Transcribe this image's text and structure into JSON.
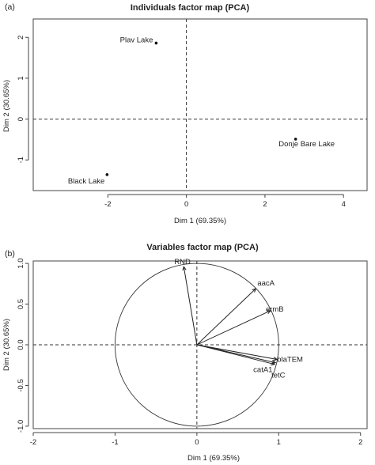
{
  "chart_data": [
    {
      "panel_label": "(a)",
      "type": "scatter",
      "title": "Individuals factor map (PCA)",
      "xlabel": "Dim 1 (69.35%)",
      "ylabel": "Dim 2 (30.65%)",
      "xlim": [
        -3.9,
        4.6
      ],
      "ylim": [
        -1.75,
        2.45
      ],
      "xticks": [
        -2,
        0,
        2,
        4
      ],
      "yticks": [
        -1,
        0,
        1,
        2
      ],
      "xtick_labels": [
        "-2",
        "0",
        "2",
        "4"
      ],
      "ytick_labels": [
        "-1",
        "0",
        "1",
        "2"
      ],
      "grid": false,
      "points": [
        {
          "label": "Plav Lake",
          "x": -0.77,
          "y": 1.86
        },
        {
          "label": "Donje Bare Lake",
          "x": 2.78,
          "y": -0.49
        },
        {
          "label": "Black Lake",
          "x": -2.02,
          "y": -1.36
        }
      ]
    },
    {
      "panel_label": "(b)",
      "type": "scatter",
      "title": "Variables factor map (PCA)",
      "xlabel": "Dim 1 (69.35%)",
      "ylabel": "Dim 2 (30.65%)",
      "xlim": [
        -2.0,
        2.08
      ],
      "ylim": [
        -1.03,
        1.03
      ],
      "xticks": [
        -2,
        -1,
        0,
        1,
        2
      ],
      "yticks": [
        -1.0,
        -0.5,
        0.0,
        0.5,
        1.0
      ],
      "xtick_labels": [
        "-2",
        "-1",
        "0",
        "1",
        "2"
      ],
      "ytick_labels": [
        "-1.0",
        "-0.5",
        "0.0",
        "0.5",
        "1.0"
      ],
      "unit_circle": true,
      "grid": false,
      "vectors": [
        {
          "label": "RND",
          "x": -0.16,
          "y": 0.96
        },
        {
          "label": "aacA",
          "x": 0.72,
          "y": 0.69
        },
        {
          "label": "ermB",
          "x": 0.9,
          "y": 0.42
        },
        {
          "label": "blaTEM",
          "x": 0.98,
          "y": -0.18
        },
        {
          "label": "catA1",
          "x": 0.96,
          "y": -0.22
        },
        {
          "label": "tetC",
          "x": 0.95,
          "y": -0.24
        }
      ]
    }
  ]
}
